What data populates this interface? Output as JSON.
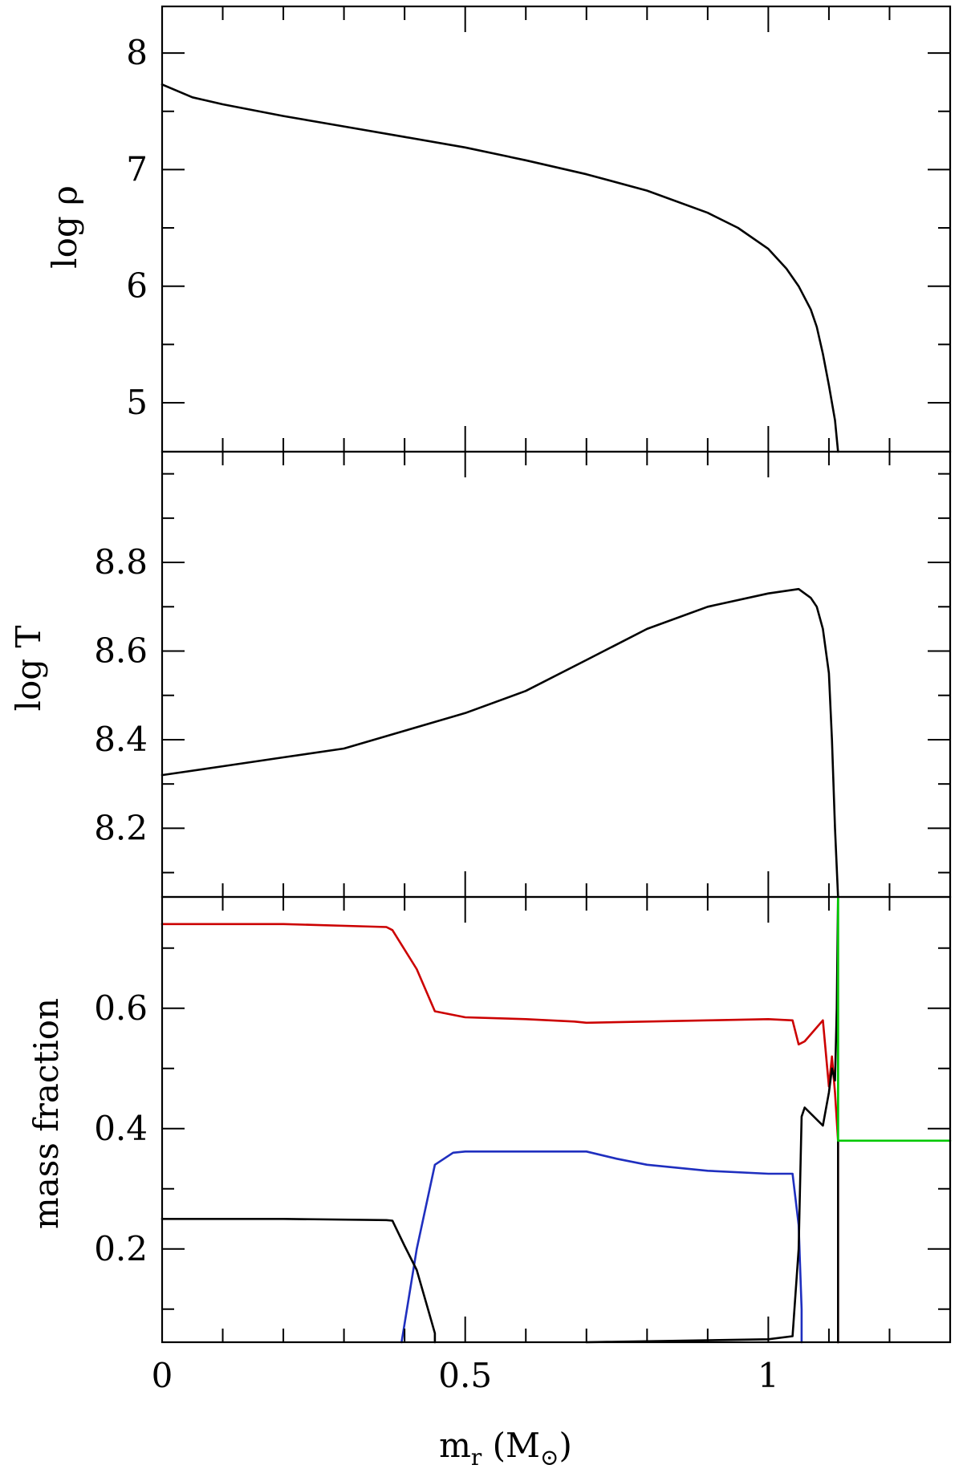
{
  "chart_data": [
    {
      "type": "line",
      "panel": "top",
      "ylabel": "log ρ",
      "xlim": [
        0,
        1.3
      ],
      "ylim": [
        4.58,
        8.4
      ],
      "y_ticks": [
        5,
        6,
        7,
        8
      ],
      "y_tick_labels": [
        "5",
        "6",
        "7",
        "8"
      ],
      "series": [
        {
          "color": "#000000",
          "x": [
            0,
            0.05,
            0.1,
            0.2,
            0.3,
            0.4,
            0.5,
            0.6,
            0.7,
            0.8,
            0.9,
            0.95,
            1.0,
            1.03,
            1.05,
            1.07,
            1.08,
            1.09,
            1.1,
            1.11,
            1.115
          ],
          "y": [
            7.73,
            7.62,
            7.56,
            7.46,
            7.37,
            7.28,
            7.19,
            7.08,
            6.96,
            6.82,
            6.63,
            6.5,
            6.32,
            6.15,
            6.0,
            5.8,
            5.65,
            5.42,
            5.15,
            4.85,
            4.58
          ]
        }
      ]
    },
    {
      "type": "line",
      "panel": "middle",
      "ylabel": "log T",
      "xlim": [
        0,
        1.3
      ],
      "ylim": [
        8.045,
        9.05
      ],
      "y_ticks": [
        8.2,
        8.4,
        8.6,
        8.8
      ],
      "y_tick_labels": [
        "8.2",
        "8.4",
        "8.6",
        "8.8"
      ],
      "series": [
        {
          "color": "#000000",
          "x": [
            0,
            0.1,
            0.2,
            0.3,
            0.4,
            0.5,
            0.6,
            0.7,
            0.8,
            0.9,
            1.0,
            1.05,
            1.07,
            1.08,
            1.09,
            1.1,
            1.105,
            1.11,
            1.115
          ],
          "y": [
            8.32,
            8.34,
            8.36,
            8.38,
            8.42,
            8.46,
            8.51,
            8.58,
            8.65,
            8.7,
            8.73,
            8.74,
            8.72,
            8.7,
            8.65,
            8.55,
            8.4,
            8.2,
            8.045
          ]
        }
      ]
    },
    {
      "type": "line",
      "panel": "bottom",
      "xlabel": "m_r (M_⊙)",
      "ylabel": "mass fraction",
      "xlim": [
        0,
        1.3
      ],
      "ylim": [
        0.045,
        0.785
      ],
      "x_ticks": [
        0,
        0.5,
        1
      ],
      "x_tick_labels": [
        "0",
        "0.5",
        "1"
      ],
      "y_ticks": [
        0.2,
        0.4,
        0.6
      ],
      "y_tick_labels": [
        "0.2",
        "0.4",
        "0.6"
      ],
      "series": [
        {
          "color": "#cc0000",
          "x": [
            0,
            0.2,
            0.37,
            0.38,
            0.42,
            0.45,
            0.5,
            0.6,
            0.68,
            0.7,
            0.8,
            0.9,
            1.0,
            1.04,
            1.05,
            1.06,
            1.09,
            1.1,
            1.105,
            1.11,
            1.115,
            1.115
          ],
          "y": [
            0.74,
            0.74,
            0.735,
            0.73,
            0.665,
            0.595,
            0.585,
            0.582,
            0.578,
            0.576,
            0.578,
            0.58,
            0.582,
            0.58,
            0.54,
            0.545,
            0.58,
            0.47,
            0.52,
            0.46,
            0.38,
            0.045
          ]
        },
        {
          "color": "#1f2fbf",
          "x": [
            0.395,
            0.42,
            0.45,
            0.48,
            0.5,
            0.6,
            0.7,
            0.75,
            0.8,
            0.9,
            1.0,
            1.04,
            1.05,
            1.055,
            1.055
          ],
          "y": [
            0.045,
            0.2,
            0.34,
            0.36,
            0.362,
            0.362,
            0.362,
            0.35,
            0.34,
            0.33,
            0.325,
            0.325,
            0.24,
            0.1,
            0.045
          ]
        },
        {
          "color": "#000000",
          "x": [
            0,
            0.2,
            0.37,
            0.38,
            0.4,
            0.42,
            0.44,
            0.45,
            0.45
          ],
          "y": [
            0.25,
            0.25,
            0.248,
            0.247,
            0.205,
            0.165,
            0.095,
            0.06,
            0.045
          ]
        },
        {
          "color": "#000000",
          "x": [
            0.7,
            1.0,
            1.04,
            1.05,
            1.055,
            1.06,
            1.08,
            1.09,
            1.1,
            1.105,
            1.11,
            1.113,
            1.115,
            1.115
          ],
          "y": [
            0.045,
            0.05,
            0.055,
            0.2,
            0.42,
            0.435,
            0.415,
            0.405,
            0.46,
            0.5,
            0.48,
            0.6,
            0.785,
            0.045
          ]
        },
        {
          "color": "#00c800",
          "x": [
            1.115,
            1.115,
            1.3
          ],
          "y": [
            0.785,
            0.38,
            0.38
          ]
        }
      ]
    }
  ]
}
